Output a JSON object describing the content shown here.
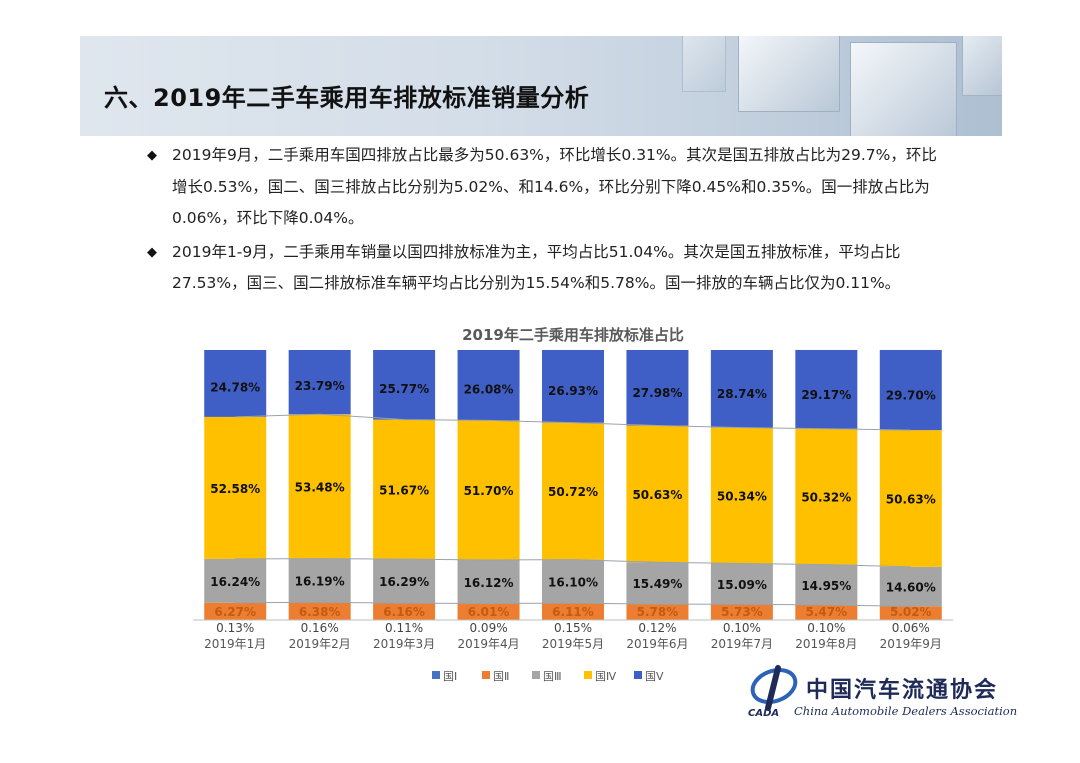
{
  "page": {
    "title": "六、2019年二手车乘用车排放标准销量分析",
    "bullets": [
      "2019年9月，二手乘用车国四排放占比最多为50.63%，环比增长0.31%。其次是国五排放占比为29.7%，环比增长0.53%，国二、国三排放占比分别为5.02%、和14.6%，环比分别下降0.45%和0.35%。国一排放占比为0.06%，环比下降0.04%。",
      "2019年1-9月，二手乘用车销量以国四排放标准为主，平均占比51.04%。其次是国五排放标准，平均占比27.53%，国三、国二排放标准车辆平均占比分别为15.54%和5.78%。国一排放的车辆占比仅为0.11%。"
    ],
    "bullet_symbol": "◆"
  },
  "chart_data": {
    "type": "bar",
    "stacked": true,
    "title": "2019年二手乘用车排放标准占比",
    "categories": [
      "2019年1月",
      "2019年2月",
      "2019年3月",
      "2019年4月",
      "2019年5月",
      "2019年6月",
      "2019年7月",
      "2019年8月",
      "2019年9月"
    ],
    "series": [
      {
        "name": "国Ⅰ",
        "color": "#4472c4",
        "values": [
          0.13,
          0.16,
          0.11,
          0.09,
          0.15,
          0.12,
          0.1,
          0.1,
          0.06
        ],
        "labels": [
          "0.13%",
          "0.16%",
          "0.11%",
          "0.09%",
          "0.15%",
          "0.12%",
          "0.10%",
          "0.10%",
          "0.06%"
        ]
      },
      {
        "name": "国Ⅱ",
        "color": "#ed7d31",
        "values": [
          6.27,
          6.38,
          6.16,
          6.01,
          6.11,
          5.78,
          5.73,
          5.47,
          5.02
        ],
        "labels": [
          "6.27%",
          "6.38%",
          "6.16%",
          "6.01%",
          "6.11%",
          "5.78%",
          "5.73%",
          "5.47%",
          "5.02%"
        ]
      },
      {
        "name": "国Ⅲ",
        "color": "#a5a5a5",
        "values": [
          16.24,
          16.19,
          16.29,
          16.12,
          16.1,
          15.49,
          15.09,
          14.95,
          14.6
        ],
        "labels": [
          "16.24%",
          "16.19%",
          "16.29%",
          "16.12%",
          "16.10%",
          "15.49%",
          "15.09%",
          "14.95%",
          "14.60%"
        ]
      },
      {
        "name": "国Ⅳ",
        "color": "#ffc000",
        "values": [
          52.58,
          53.48,
          51.67,
          51.7,
          50.72,
          50.63,
          50.34,
          50.32,
          50.63
        ],
        "labels": [
          "52.58%",
          "53.48%",
          "51.67%",
          "51.70%",
          "50.72%",
          "50.63%",
          "50.34%",
          "50.32%",
          "50.63%"
        ]
      },
      {
        "name": "国Ⅴ",
        "color": "#3f5fc6",
        "values": [
          24.78,
          23.79,
          25.77,
          26.08,
          26.93,
          27.98,
          28.74,
          29.17,
          29.7
        ],
        "labels": [
          "24.78%",
          "23.79%",
          "25.77%",
          "26.08%",
          "26.93%",
          "27.98%",
          "28.74%",
          "29.17%",
          "29.70%"
        ]
      }
    ],
    "ylim": [
      0,
      100
    ],
    "legend": "bottom",
    "grid": false
  },
  "logo": {
    "name_cn": "中国汽车流通协会",
    "name_en": "China Automobile Dealers Association",
    "abbr": "CADA"
  }
}
